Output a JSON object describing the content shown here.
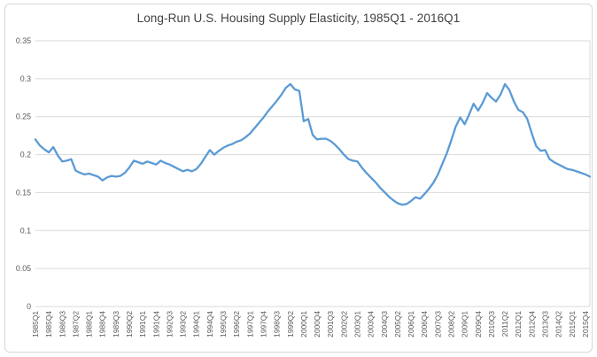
{
  "chart_data": {
    "type": "line",
    "title": "Long-Run U.S. Housing Supply Elasticity, 1985Q1 - 2016Q1",
    "xlabel": "",
    "ylabel": "",
    "ylim": [
      0,
      0.35
    ],
    "y_ticks": [
      0,
      0.05,
      0.1,
      0.15,
      0.2,
      0.25,
      0.3,
      0.35
    ],
    "y_tick_labels": [
      "0",
      "0.05",
      "0.1",
      "0.15",
      "0.2",
      "0.25",
      "0.3",
      "0.35"
    ],
    "x_tick_step": 3,
    "x_tick_labels": [
      "1985Q1",
      "1985Q4",
      "1986Q3",
      "1987Q2",
      "1988Q1",
      "1988Q4",
      "1989Q3",
      "1990Q2",
      "1991Q1",
      "1991Q4",
      "1992Q3",
      "1993Q2",
      "1994Q1",
      "1994Q4",
      "1995Q3",
      "1996Q2",
      "1997Q1",
      "1997Q4",
      "1998Q3",
      "1999Q2",
      "2000Q1",
      "2000Q4",
      "2001Q3",
      "2002Q2",
      "2003Q1",
      "2003Q4",
      "2004Q3",
      "2005Q2",
      "2006Q1",
      "2006Q4",
      "2007Q3",
      "2008Q2",
      "2009Q1",
      "2009Q4",
      "2010Q3",
      "2011Q2",
      "2012Q1",
      "2012Q4",
      "2013Q3",
      "2014Q2",
      "2015Q1",
      "2015Q4"
    ],
    "grid": "horizontal",
    "legend_position": "none",
    "line_color": "#5b9bd5",
    "gridline_color": "#d9d9d9",
    "axis_label_color": "#595959",
    "title_color": "#404040",
    "categories": [
      "1985Q1",
      "1985Q2",
      "1985Q3",
      "1985Q4",
      "1986Q1",
      "1986Q2",
      "1986Q3",
      "1986Q4",
      "1987Q1",
      "1987Q2",
      "1987Q3",
      "1987Q4",
      "1988Q1",
      "1988Q2",
      "1988Q3",
      "1988Q4",
      "1989Q1",
      "1989Q2",
      "1989Q3",
      "1989Q4",
      "1990Q1",
      "1990Q2",
      "1990Q3",
      "1990Q4",
      "1991Q1",
      "1991Q2",
      "1991Q3",
      "1991Q4",
      "1992Q1",
      "1992Q2",
      "1992Q3",
      "1992Q4",
      "1993Q1",
      "1993Q2",
      "1993Q3",
      "1993Q4",
      "1994Q1",
      "1994Q2",
      "1994Q3",
      "1994Q4",
      "1995Q1",
      "1995Q2",
      "1995Q3",
      "1995Q4",
      "1996Q1",
      "1996Q2",
      "1996Q3",
      "1996Q4",
      "1997Q1",
      "1997Q2",
      "1997Q3",
      "1997Q4",
      "1998Q1",
      "1998Q2",
      "1998Q3",
      "1998Q4",
      "1999Q1",
      "1999Q2",
      "1999Q3",
      "1999Q4",
      "2000Q1",
      "2000Q2",
      "2000Q3",
      "2000Q4",
      "2001Q1",
      "2001Q2",
      "2001Q3",
      "2001Q4",
      "2002Q1",
      "2002Q2",
      "2002Q3",
      "2002Q4",
      "2003Q1",
      "2003Q2",
      "2003Q3",
      "2003Q4",
      "2004Q1",
      "2004Q2",
      "2004Q3",
      "2004Q4",
      "2005Q1",
      "2005Q2",
      "2005Q3",
      "2005Q4",
      "2006Q1",
      "2006Q2",
      "2006Q3",
      "2006Q4",
      "2007Q1",
      "2007Q2",
      "2007Q3",
      "2007Q4",
      "2008Q1",
      "2008Q2",
      "2008Q3",
      "2008Q4",
      "2009Q1",
      "2009Q2",
      "2009Q3",
      "2009Q4",
      "2010Q1",
      "2010Q2",
      "2010Q3",
      "2010Q4",
      "2011Q1",
      "2011Q2",
      "2011Q3",
      "2011Q4",
      "2012Q1",
      "2012Q2",
      "2012Q3",
      "2012Q4",
      "2013Q1",
      "2013Q2",
      "2013Q3",
      "2013Q4",
      "2014Q1",
      "2014Q2",
      "2014Q3",
      "2014Q4",
      "2015Q1",
      "2015Q2",
      "2015Q3",
      "2015Q4",
      "2016Q1"
    ],
    "values": [
      0.22,
      0.212,
      0.207,
      0.203,
      0.21,
      0.199,
      0.191,
      0.192,
      0.194,
      0.179,
      0.176,
      0.174,
      0.175,
      0.173,
      0.171,
      0.166,
      0.17,
      0.172,
      0.171,
      0.172,
      0.176,
      0.183,
      0.192,
      0.19,
      0.188,
      0.191,
      0.189,
      0.187,
      0.192,
      0.189,
      0.187,
      0.184,
      0.181,
      0.178,
      0.18,
      0.178,
      0.181,
      0.188,
      0.197,
      0.206,
      0.2,
      0.205,
      0.209,
      0.212,
      0.214,
      0.217,
      0.219,
      0.223,
      0.228,
      0.235,
      0.242,
      0.249,
      0.257,
      0.264,
      0.271,
      0.279,
      0.288,
      0.293,
      0.286,
      0.284,
      0.244,
      0.247,
      0.226,
      0.22,
      0.221,
      0.221,
      0.218,
      0.213,
      0.207,
      0.2,
      0.194,
      0.192,
      0.191,
      0.183,
      0.176,
      0.17,
      0.164,
      0.157,
      0.151,
      0.145,
      0.14,
      0.136,
      0.134,
      0.135,
      0.139,
      0.144,
      0.142,
      0.148,
      0.155,
      0.163,
      0.174,
      0.188,
      0.202,
      0.219,
      0.237,
      0.249,
      0.24,
      0.253,
      0.267,
      0.258,
      0.268,
      0.281,
      0.275,
      0.27,
      0.279,
      0.293,
      0.285,
      0.27,
      0.259,
      0.256,
      0.247,
      0.228,
      0.211,
      0.205,
      0.206,
      0.194,
      0.19,
      0.187,
      0.184,
      0.181,
      0.18,
      0.178,
      0.176,
      0.174,
      0.171
    ]
  }
}
